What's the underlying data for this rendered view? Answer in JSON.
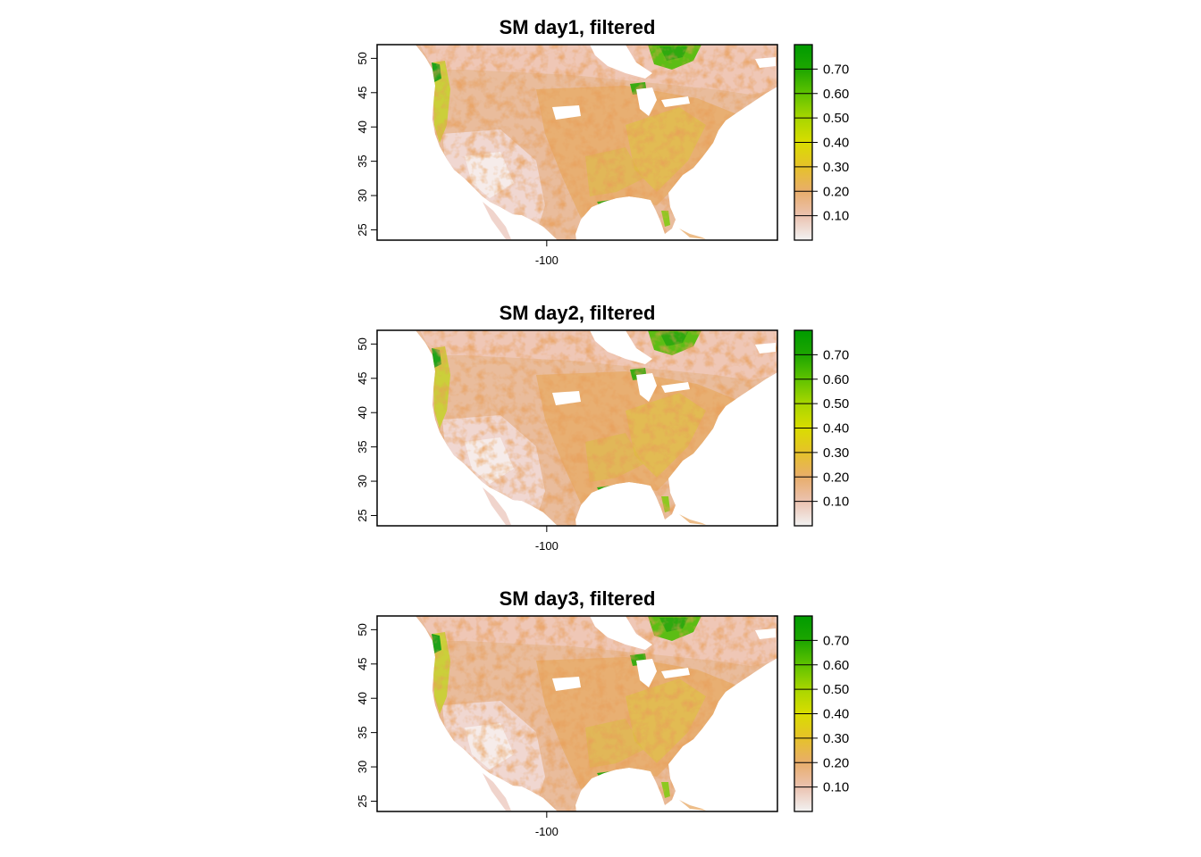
{
  "figure": {
    "panels": [
      {
        "title": "SM day1, filtered",
        "variant": 0
      },
      {
        "title": "SM day2, filtered",
        "variant": 1
      },
      {
        "title": "SM day3, filtered",
        "variant": 2
      }
    ],
    "x_ticks": [
      {
        "value": -100,
        "label": "-100"
      }
    ],
    "y_ticks": [
      {
        "value": 25,
        "label": "25"
      },
      {
        "value": 30,
        "label": "30"
      },
      {
        "value": 35,
        "label": "35"
      },
      {
        "value": 40,
        "label": "40"
      },
      {
        "value": 45,
        "label": "45"
      },
      {
        "value": 50,
        "label": "50"
      }
    ],
    "xlim": [
      -125,
      -66
    ],
    "ylim": [
      23.5,
      52
    ],
    "legend": {
      "range": [
        0,
        0.8
      ],
      "ticks": [
        {
          "value": 0.1,
          "label": "0.10"
        },
        {
          "value": 0.2,
          "label": "0.20"
        },
        {
          "value": 0.3,
          "label": "0.30"
        },
        {
          "value": 0.4,
          "label": "0.40"
        },
        {
          "value": 0.5,
          "label": "0.50"
        },
        {
          "value": 0.6,
          "label": "0.60"
        },
        {
          "value": 0.7,
          "label": "0.70"
        }
      ],
      "colors": [
        "#f2f2f2",
        "#ebc2b0",
        "#e8ad6b",
        "#e6c22a",
        "#d9dd00",
        "#a8d600",
        "#5fc200",
        "#1da600",
        "#009b00"
      ]
    }
  }
}
